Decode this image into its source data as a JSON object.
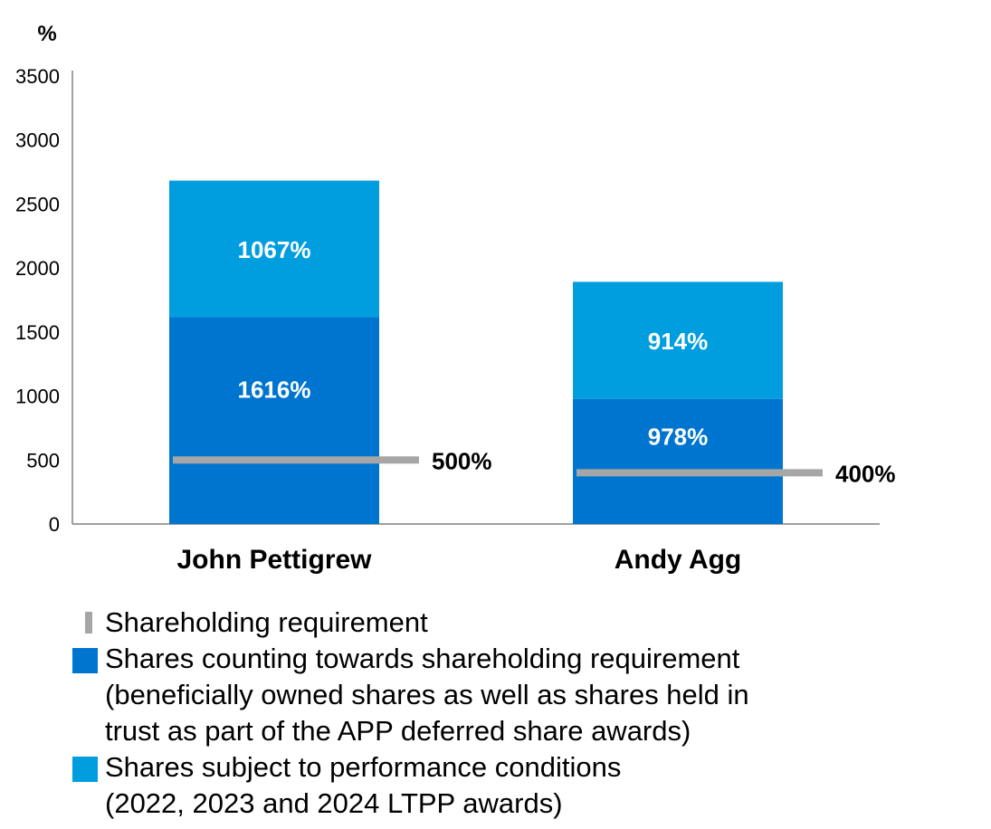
{
  "chart_data": {
    "type": "bar",
    "stacked": true,
    "unit_label": "%",
    "categories": [
      "John Pettigrew",
      "Andy Agg"
    ],
    "ylim": [
      0,
      3500
    ],
    "yticks": [
      0,
      500,
      1000,
      1500,
      2000,
      2500,
      3000,
      3500
    ],
    "series": [
      {
        "name": "Shares counting towards shareholding requirement (beneficially owned shares as well as shares held in trust as part of the APP deferred share awards)",
        "values": [
          1616,
          978
        ],
        "labels": [
          "1616%",
          "978%"
        ],
        "color": "#0075cf"
      },
      {
        "name": "Shares subject to performance conditions (2022, 2023 and 2024 LTPP awards)",
        "values": [
          1067,
          914
        ],
        "labels": [
          "1067%",
          "914%"
        ],
        "color": "#009edf"
      }
    ],
    "requirement": {
      "name": "Shareholding requirement",
      "values": [
        500,
        400
      ],
      "labels": [
        "500%",
        "400%"
      ],
      "color": "#a6a6a6"
    },
    "legend": [
      {
        "key": "requirement",
        "text": "Shareholding requirement",
        "color": "#a6a6a6"
      },
      {
        "key": "counting",
        "text": "Shares counting towards shareholding requirement\n(beneficially owned shares as well as shares held in\ntrust as part of the APP deferred share awards)",
        "color": "#0075cf"
      },
      {
        "key": "performance",
        "text": "Shares subject to performance conditions\n(2022, 2023 and 2024 LTPP awards)",
        "color": "#009edf"
      }
    ]
  }
}
